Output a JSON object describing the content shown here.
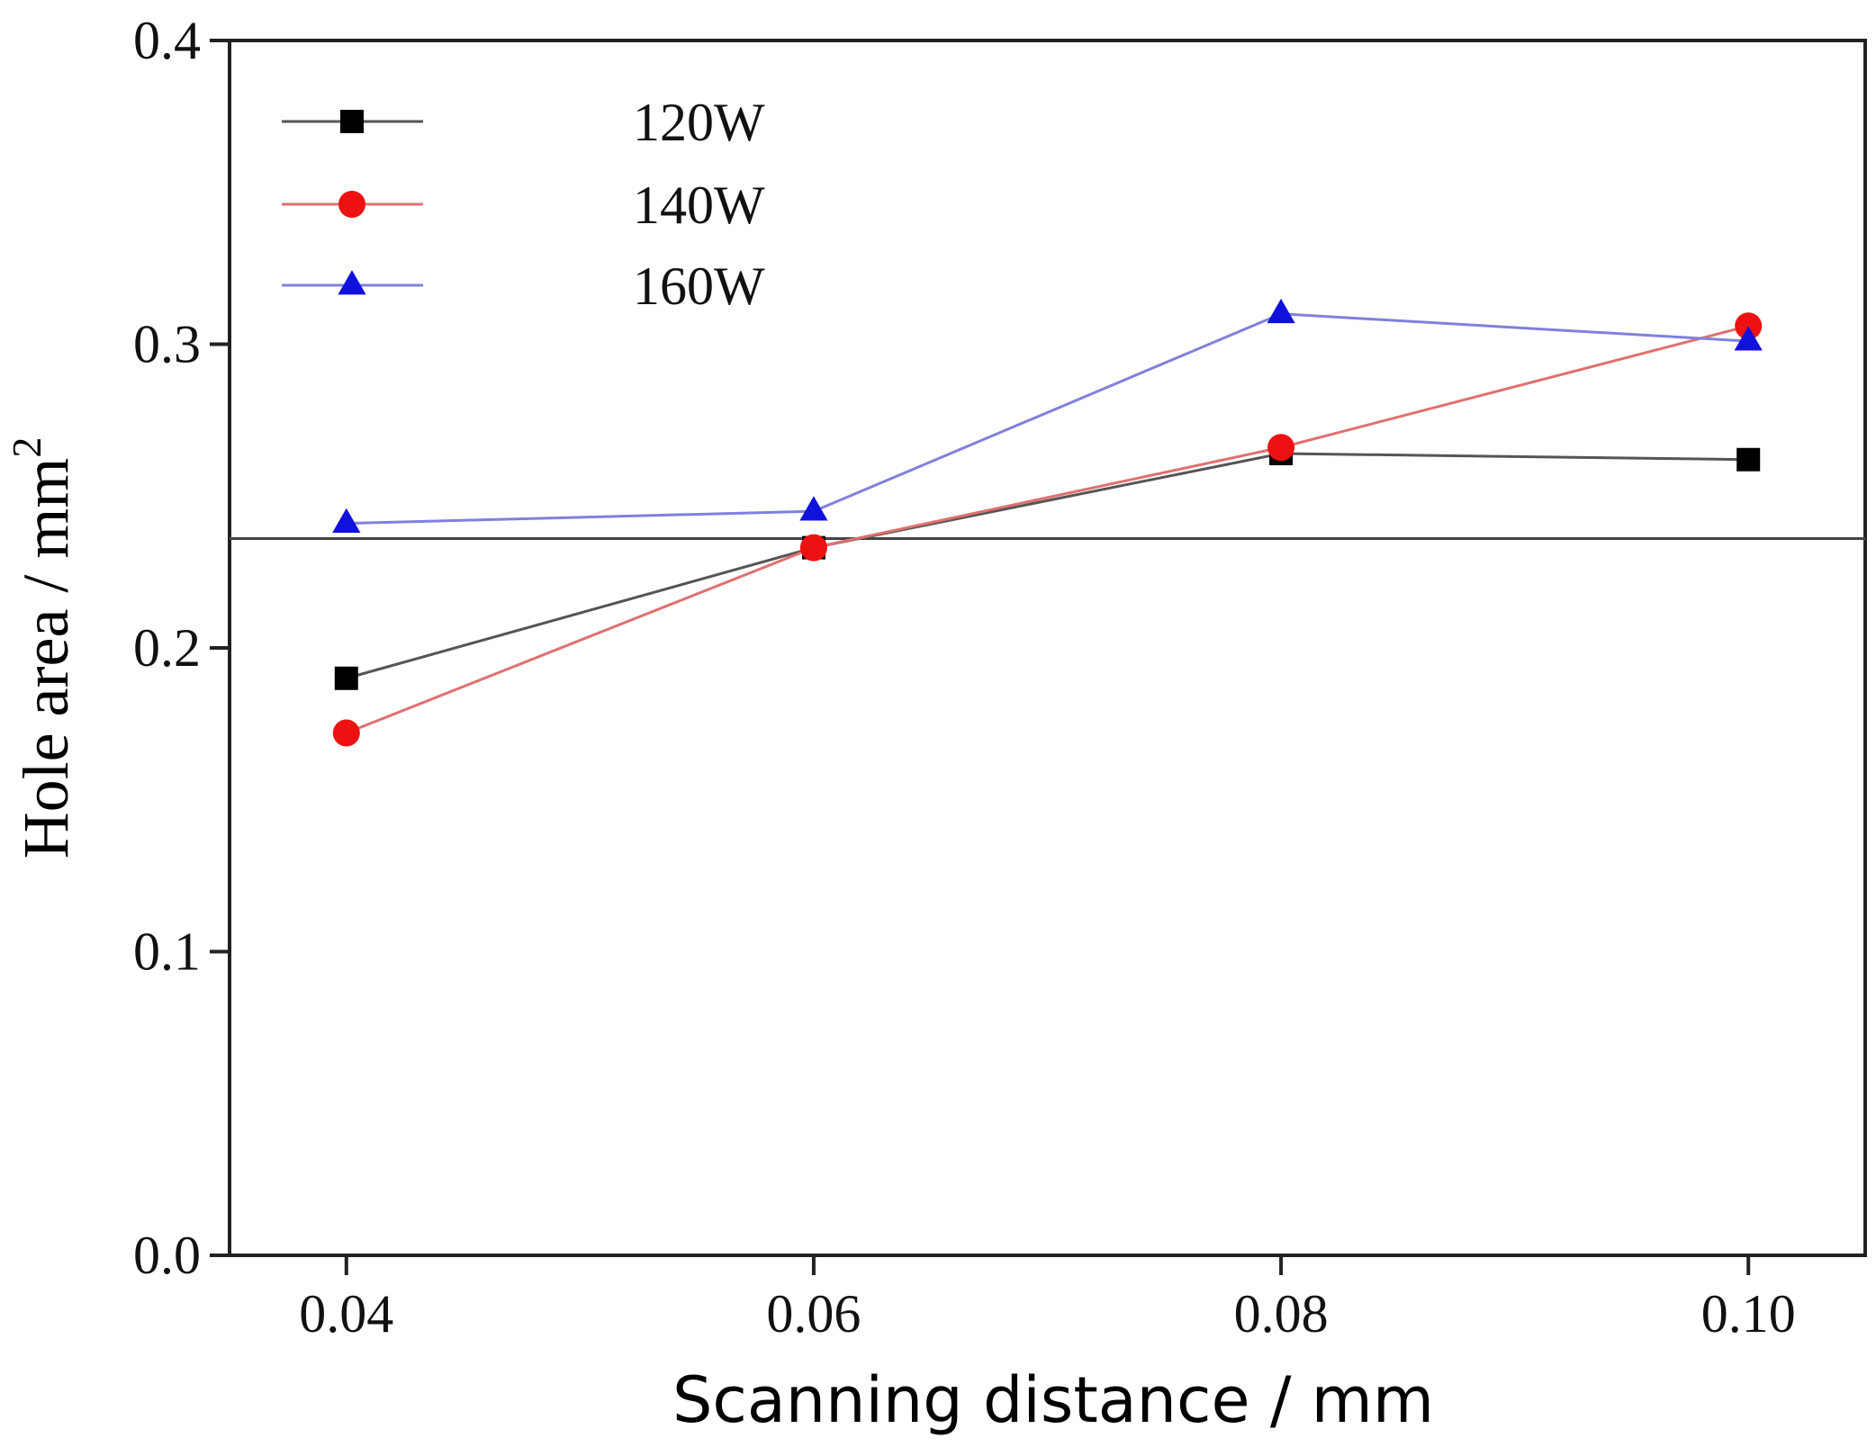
{
  "chart_data": {
    "type": "line",
    "title": "",
    "x": [
      0.04,
      0.06,
      0.08,
      0.1
    ],
    "x_tick_labels": [
      "0.04",
      "0.06",
      "0.08",
      "0.10"
    ],
    "xlabel": "Scanning distance / mm",
    "ylabel": "Hole area / mm",
    "ylabel_superscript": "2",
    "xlim": [
      0.035,
      0.105
    ],
    "ylim": [
      0.0,
      0.4
    ],
    "y_ticks": [
      0.0,
      0.1,
      0.2,
      0.3,
      0.4
    ],
    "y_tick_labels": [
      "0.0",
      "0.1",
      "0.2",
      "0.3",
      "0.4"
    ],
    "reference_line_y": 0.236,
    "legend_position": "top-left",
    "series": [
      {
        "name": "120W",
        "values": [
          0.19,
          0.233,
          0.264,
          0.262
        ],
        "color": "#000000",
        "line_color": "#555555",
        "marker": "square"
      },
      {
        "name": "140W",
        "values": [
          0.172,
          0.233,
          0.266,
          0.306
        ],
        "color": "#ee1111",
        "line_color": "#e07070",
        "marker": "circle"
      },
      {
        "name": "160W",
        "values": [
          0.241,
          0.245,
          0.31,
          0.301
        ],
        "color": "#1111dd",
        "line_color": "#8080dd",
        "marker": "triangle"
      }
    ]
  }
}
